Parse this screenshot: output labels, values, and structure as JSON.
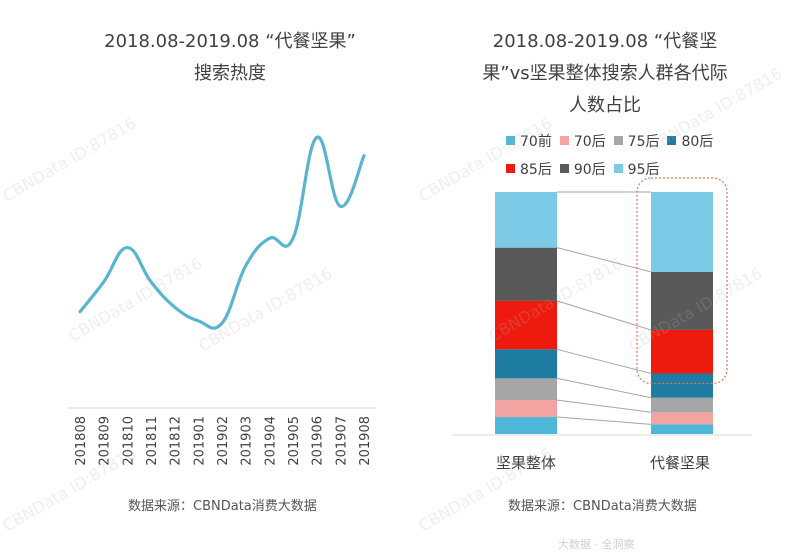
{
  "chart_data": [
    {
      "type": "line",
      "title": "2018.08-2019.08 “代餐坚果”搜索热度",
      "title_lines": [
        "2018.08-2019.08  “代餐坚果”",
        "搜索热度"
      ],
      "x": [
        "201808",
        "201809",
        "201810",
        "201811",
        "201812",
        "201901",
        "201902",
        "201903",
        "201904",
        "201905",
        "201906",
        "201907",
        "201908"
      ],
      "series": [
        {
          "values": [
            42,
            55,
            70,
            55,
            44,
            38,
            37,
            62,
            74,
            74,
            118,
            88,
            110
          ]
        }
      ],
      "ylim": [
        0,
        130
      ],
      "color": "#5ab4cf",
      "grid": false,
      "source": "数据来源：CBNData消费大数据"
    },
    {
      "type": "bar",
      "stacked": true,
      "normalized": true,
      "title": "2018.08-2019.08 “代餐坚果”vs坚果整体搜索人群各代际人数占比",
      "title_lines": [
        "2018.08-2019.08  “代餐坚",
        "果”vs坚果整体搜索人群各代际",
        "人数占比"
      ],
      "categories": [
        "坚果整体",
        "代餐坚果"
      ],
      "series": [
        {
          "name": "70前",
          "color": "#4fb7d8",
          "values": [
            0.07,
            0.04
          ]
        },
        {
          "name": "70后",
          "color": "#f4a3a3",
          "values": [
            0.07,
            0.05
          ]
        },
        {
          "name": "75后",
          "color": "#a6a6a6",
          "values": [
            0.09,
            0.06
          ]
        },
        {
          "name": "80后",
          "color": "#1e7ba1",
          "values": [
            0.12,
            0.1
          ]
        },
        {
          "name": "85后",
          "color": "#ee1a0e",
          "values": [
            0.2,
            0.18
          ]
        },
        {
          "name": "90后",
          "color": "#595959",
          "values": [
            0.22,
            0.24
          ]
        },
        {
          "name": "95后",
          "color": "#7ccbe6",
          "values": [
            0.23,
            0.33
          ]
        }
      ],
      "legend_rows": [
        [
          "70前",
          "70后",
          "75后",
          "80后"
        ],
        [
          "85后",
          "90后",
          "95后"
        ]
      ],
      "highlight": "代餐坚果 90后+95后",
      "source": "数据来源：CBNData消费大数据"
    }
  ],
  "watermark_text": "CBNData ID:87816",
  "footer_watermark": "大数据 · 全洞察"
}
